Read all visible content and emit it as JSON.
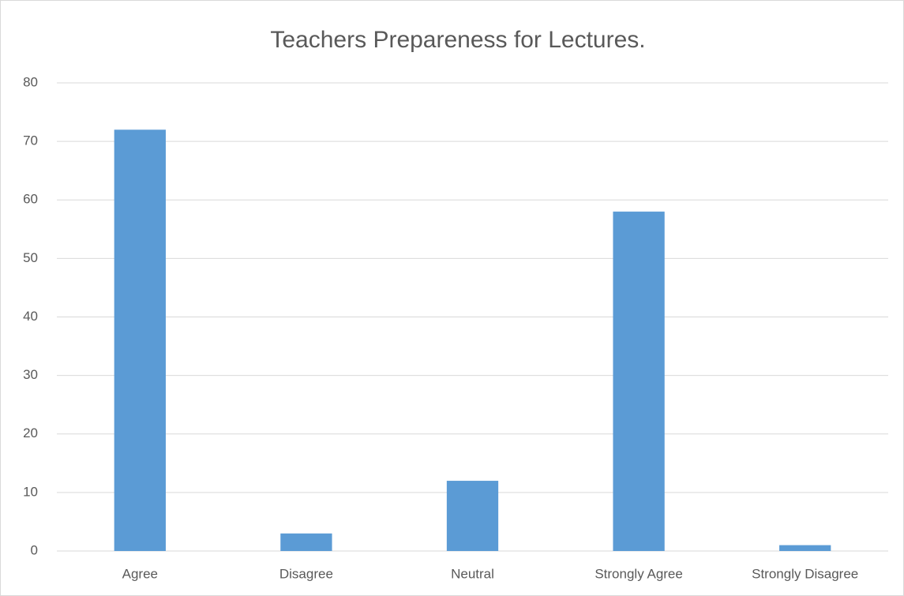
{
  "chart_data": {
    "type": "bar",
    "title": "Teachers Prepareness for Lectures.",
    "categories": [
      "Agree",
      "Disagree",
      "Neutral",
      "Strongly Agree",
      "Strongly Disagree"
    ],
    "values": [
      72,
      3,
      12,
      58,
      1
    ],
    "color": "#5b9bd5",
    "ylim": [
      0,
      80
    ],
    "yticks": [
      0,
      10,
      20,
      30,
      40,
      50,
      60,
      70,
      80
    ],
    "grid": true
  }
}
